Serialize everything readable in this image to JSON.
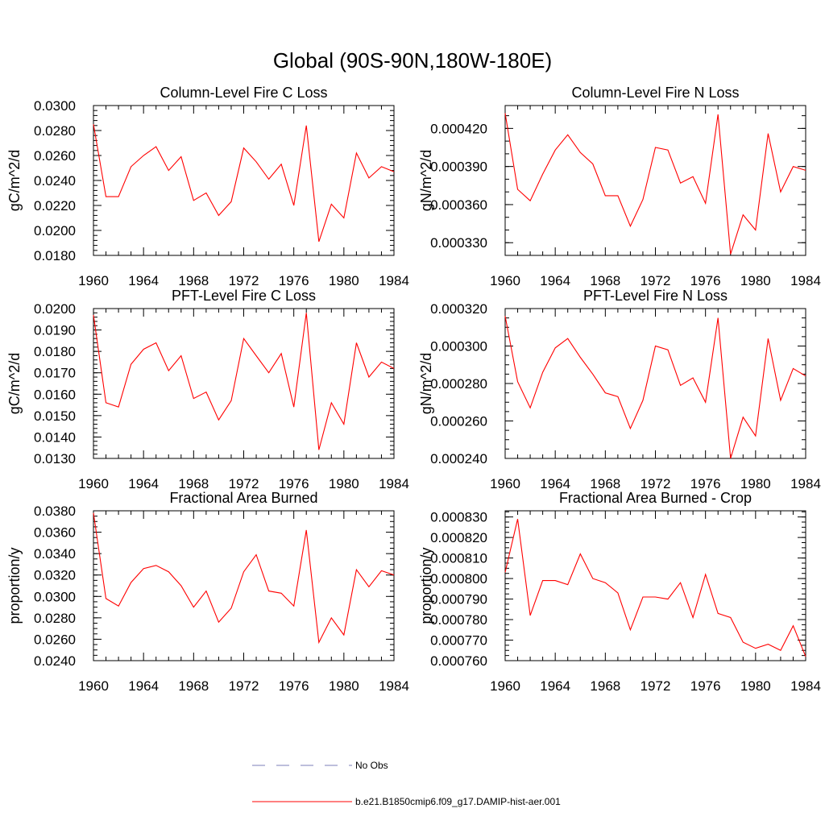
{
  "figure": {
    "title": "Global (90S-90N,180W-180E)",
    "legend": [
      {
        "label": "No Obs",
        "color": "#7b7fb8",
        "style": "dashed"
      },
      {
        "label": "b.e21.B1850cmip6.f09_g17.DAMIP-hist-aer.001",
        "color": "#ff0000",
        "style": "solid"
      }
    ]
  },
  "chart_data": [
    {
      "type": "line",
      "title": "Column-Level Fire C Loss",
      "xlabel": "",
      "ylabel": "gC/m^2/d",
      "xlim": [
        1960,
        1984
      ],
      "ylim": [
        0.018,
        0.03
      ],
      "xticks": [
        1960,
        1964,
        1968,
        1972,
        1976,
        1980,
        1984
      ],
      "yticks": [
        0.018,
        0.02,
        0.022,
        0.024,
        0.026,
        0.028,
        0.03
      ],
      "yticklabels": [
        "0.0180",
        "0.0200",
        "0.0220",
        "0.0240",
        "0.0260",
        "0.0280",
        "0.0300"
      ],
      "minor_yticks": 5,
      "x": [
        1960,
        1961,
        1962,
        1963,
        1964,
        1965,
        1966,
        1967,
        1968,
        1969,
        1970,
        1971,
        1972,
        1973,
        1974,
        1975,
        1976,
        1977,
        1978,
        1979,
        1980,
        1981,
        1982,
        1983,
        1984
      ],
      "series": [
        {
          "color": "#ff0000",
          "values": [
            0.0285,
            0.0227,
            0.0227,
            0.0251,
            0.026,
            0.0267,
            0.0248,
            0.0259,
            0.0224,
            0.023,
            0.0212,
            0.0223,
            0.0266,
            0.0255,
            0.0241,
            0.0253,
            0.022,
            0.0284,
            0.0191,
            0.0221,
            0.021,
            0.0262,
            0.0242,
            0.0251,
            0.0247
          ]
        }
      ]
    },
    {
      "type": "line",
      "title": "Column-Level Fire N Loss",
      "xlabel": "",
      "ylabel": "gN/m^2/d",
      "xlim": [
        1960,
        1984
      ],
      "ylim": [
        0.00032,
        0.000438
      ],
      "xticks": [
        1960,
        1964,
        1968,
        1972,
        1976,
        1980,
        1984
      ],
      "yticks": [
        0.00033,
        0.00036,
        0.00039,
        0.00042
      ],
      "yticklabels": [
        "0.000330",
        "0.000360",
        "0.000390",
        "0.000420"
      ],
      "minor_yticks": 3,
      "x": [
        1960,
        1961,
        1962,
        1963,
        1964,
        1965,
        1966,
        1967,
        1968,
        1969,
        1970,
        1971,
        1972,
        1973,
        1974,
        1975,
        1976,
        1977,
        1978,
        1979,
        1980,
        1981,
        1982,
        1983,
        1984
      ],
      "series": [
        {
          "color": "#ff0000",
          "values": [
            0.000432,
            0.000372,
            0.000363,
            0.000384,
            0.000403,
            0.000415,
            0.000401,
            0.000392,
            0.000367,
            0.000367,
            0.000343,
            0.000364,
            0.000405,
            0.000403,
            0.000377,
            0.000382,
            0.000361,
            0.000431,
            0.000321,
            0.000352,
            0.00034,
            0.000416,
            0.00037,
            0.00039,
            0.000387
          ]
        }
      ]
    },
    {
      "type": "line",
      "title": "PFT-Level Fire C Loss",
      "xlabel": "",
      "ylabel": "gC/m^2/d",
      "xlim": [
        1960,
        1984
      ],
      "ylim": [
        0.013,
        0.02
      ],
      "xticks": [
        1960,
        1964,
        1968,
        1972,
        1976,
        1980,
        1984
      ],
      "yticks": [
        0.013,
        0.014,
        0.015,
        0.016,
        0.017,
        0.018,
        0.019,
        0.02
      ],
      "yticklabels": [
        "0.0130",
        "0.0140",
        "0.0150",
        "0.0160",
        "0.0170",
        "0.0180",
        "0.0190",
        "0.0200"
      ],
      "minor_yticks": 5,
      "x": [
        1960,
        1961,
        1962,
        1963,
        1964,
        1965,
        1966,
        1967,
        1968,
        1969,
        1970,
        1971,
        1972,
        1973,
        1974,
        1975,
        1976,
        1977,
        1978,
        1979,
        1980,
        1981,
        1982,
        1983,
        1984
      ],
      "series": [
        {
          "color": "#ff0000",
          "values": [
            0.0197,
            0.0156,
            0.0154,
            0.0174,
            0.0181,
            0.0184,
            0.0171,
            0.0178,
            0.0158,
            0.0161,
            0.0148,
            0.0157,
            0.0186,
            0.0178,
            0.017,
            0.0179,
            0.0154,
            0.0198,
            0.0134,
            0.0156,
            0.0146,
            0.0184,
            0.0168,
            0.0175,
            0.0172
          ]
        }
      ]
    },
    {
      "type": "line",
      "title": "PFT-Level Fire N Loss",
      "xlabel": "",
      "ylabel": "gN/m^2/d",
      "xlim": [
        1960,
        1984
      ],
      "ylim": [
        0.00024,
        0.00032
      ],
      "xticks": [
        1960,
        1964,
        1968,
        1972,
        1976,
        1980,
        1984
      ],
      "yticks": [
        0.00024,
        0.00026,
        0.00028,
        0.0003,
        0.00032
      ],
      "yticklabels": [
        "0.000240",
        "0.000260",
        "0.000280",
        "0.000300",
        "0.000320"
      ],
      "minor_yticks": 4,
      "x": [
        1960,
        1961,
        1962,
        1963,
        1964,
        1965,
        1966,
        1967,
        1968,
        1969,
        1970,
        1971,
        1972,
        1973,
        1974,
        1975,
        1976,
        1977,
        1978,
        1979,
        1980,
        1981,
        1982,
        1983,
        1984
      ],
      "series": [
        {
          "color": "#ff0000",
          "values": [
            0.000316,
            0.000281,
            0.000267,
            0.000286,
            0.000299,
            0.000304,
            0.000294,
            0.000285,
            0.000275,
            0.000273,
            0.000256,
            0.000271,
            0.0003,
            0.000298,
            0.000279,
            0.000283,
            0.00027,
            0.000315,
            0.00024,
            0.000262,
            0.000252,
            0.000304,
            0.000271,
            0.000288,
            0.000284
          ]
        }
      ]
    },
    {
      "type": "line",
      "title": "Fractional Area Burned",
      "xlabel": "",
      "ylabel": "proportion/y",
      "xlim": [
        1960,
        1984
      ],
      "ylim": [
        0.024,
        0.038
      ],
      "xticks": [
        1960,
        1964,
        1968,
        1972,
        1976,
        1980,
        1984
      ],
      "yticks": [
        0.024,
        0.026,
        0.028,
        0.03,
        0.032,
        0.034,
        0.036,
        0.038
      ],
      "yticklabels": [
        "0.0240",
        "0.0260",
        "0.0280",
        "0.0300",
        "0.0320",
        "0.0340",
        "0.0360",
        "0.0380"
      ],
      "minor_yticks": 4,
      "x": [
        1960,
        1961,
        1962,
        1963,
        1964,
        1965,
        1966,
        1967,
        1968,
        1969,
        1970,
        1971,
        1972,
        1973,
        1974,
        1975,
        1976,
        1977,
        1978,
        1979,
        1980,
        1981,
        1982,
        1983,
        1984
      ],
      "series": [
        {
          "color": "#ff0000",
          "values": [
            0.0378,
            0.0298,
            0.0291,
            0.0313,
            0.0326,
            0.0329,
            0.0323,
            0.031,
            0.029,
            0.0305,
            0.0276,
            0.0289,
            0.0323,
            0.0339,
            0.0305,
            0.0303,
            0.0291,
            0.0362,
            0.0257,
            0.028,
            0.0264,
            0.0325,
            0.0309,
            0.0324,
            0.032
          ]
        }
      ]
    },
    {
      "type": "line",
      "title": "Fractional Area Burned - Crop",
      "xlabel": "",
      "ylabel": "proportion/y",
      "xlim": [
        1960,
        1984
      ],
      "ylim": [
        0.00076,
        0.000833
      ],
      "xticks": [
        1960,
        1964,
        1968,
        1972,
        1976,
        1980,
        1984
      ],
      "yticks": [
        0.00076,
        0.00077,
        0.00078,
        0.00079,
        0.0008,
        0.00081,
        0.00082,
        0.00083
      ],
      "yticklabels": [
        "0.000760",
        "0.000770",
        "0.000780",
        "0.000790",
        "0.000800",
        "0.000810",
        "0.000820",
        "0.000830"
      ],
      "minor_yticks": 4,
      "x": [
        1960,
        1961,
        1962,
        1963,
        1964,
        1965,
        1966,
        1967,
        1968,
        1969,
        1970,
        1971,
        1972,
        1973,
        1974,
        1975,
        1976,
        1977,
        1978,
        1979,
        1980,
        1981,
        1982,
        1983,
        1984
      ],
      "series": [
        {
          "color": "#ff0000",
          "values": [
            0.000803,
            0.000829,
            0.000782,
            0.000799,
            0.000799,
            0.000797,
            0.000812,
            0.0008,
            0.000798,
            0.000793,
            0.000775,
            0.000791,
            0.000791,
            0.00079,
            0.000798,
            0.000781,
            0.000802,
            0.000783,
            0.000781,
            0.000769,
            0.000766,
            0.000768,
            0.000765,
            0.000777,
            0.000762
          ]
        }
      ]
    }
  ]
}
